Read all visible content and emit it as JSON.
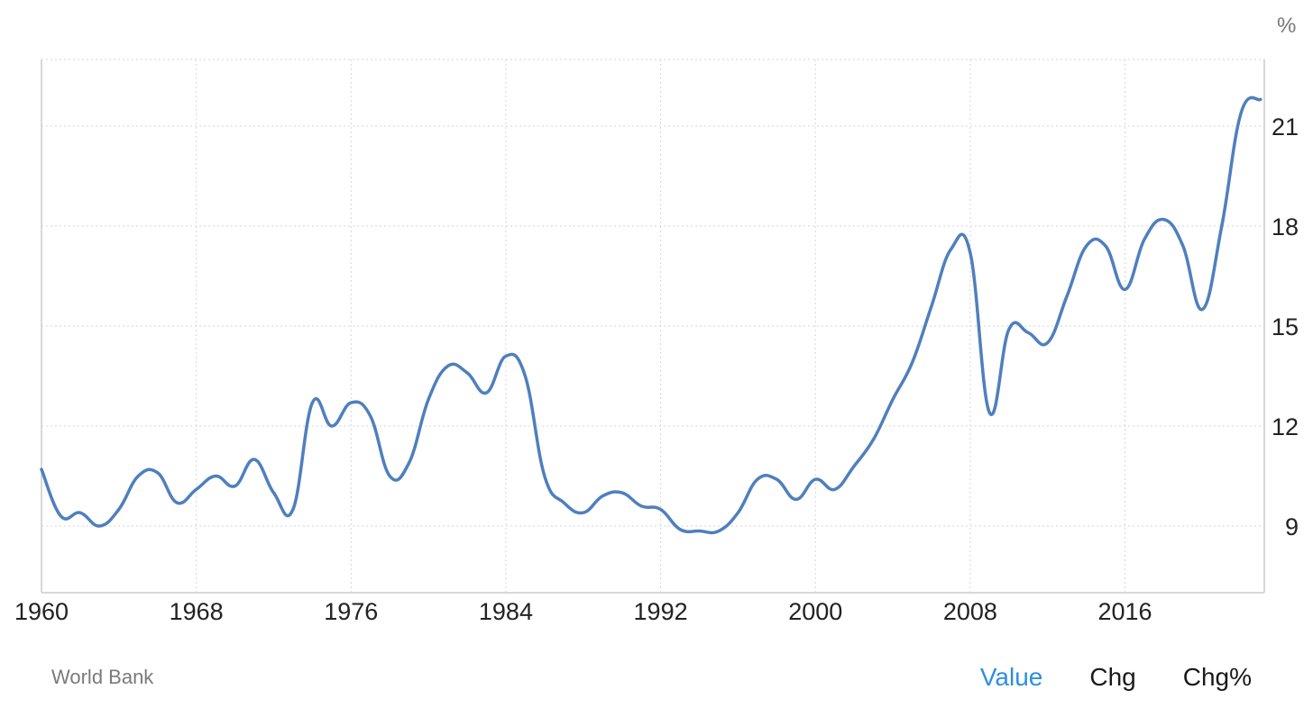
{
  "source_label": "World Bank",
  "tabs": [
    {
      "label": "Value",
      "active": true
    },
    {
      "label": "Chg",
      "active": false
    },
    {
      "label": "Chg%",
      "active": false
    }
  ],
  "colors": {
    "line": "#4f7fbd",
    "grid": "#d6d6d6",
    "active_tab": "#2d8fe0"
  },
  "chart_data": {
    "type": "line",
    "unit": "%",
    "x_ticks": [
      "1960",
      "1968",
      "1976",
      "1984",
      "1992",
      "2000",
      "2008",
      "2016"
    ],
    "y_ticks": [
      9,
      12,
      15,
      18,
      21
    ],
    "xlim": [
      1960,
      2023.2
    ],
    "ylim": [
      7.0,
      23.0
    ],
    "grid": true,
    "y_axis_side": "right",
    "series": [
      {
        "x": [
          1960,
          1961,
          1962,
          1963,
          1964,
          1965,
          1966,
          1967,
          1968,
          1969,
          1970,
          1971,
          1972,
          1973,
          1974,
          1975,
          1976,
          1977,
          1978,
          1979,
          1980,
          1981,
          1982,
          1983,
          1984,
          1985,
          1986,
          1987,
          1988,
          1989,
          1990,
          1991,
          1992,
          1993,
          1994,
          1995,
          1996,
          1997,
          1998,
          1999,
          2000,
          2001,
          2002,
          2003,
          2004,
          2005,
          2006,
          2007,
          2008,
          2009,
          2010,
          2011,
          2012,
          2013,
          2014,
          2015,
          2016,
          2017,
          2018,
          2019,
          2020,
          2021,
          2022,
          2023
        ],
        "y": [
          10.7,
          9.3,
          9.4,
          9.0,
          9.5,
          10.5,
          10.6,
          9.7,
          10.1,
          10.5,
          10.2,
          11.0,
          10.0,
          9.5,
          12.7,
          12.0,
          12.7,
          12.3,
          10.5,
          10.9,
          12.8,
          13.8,
          13.6,
          13.0,
          14.1,
          13.5,
          10.5,
          9.7,
          9.4,
          9.9,
          10.0,
          9.6,
          9.5,
          8.9,
          8.85,
          8.85,
          9.4,
          10.4,
          10.4,
          9.8,
          10.4,
          10.1,
          10.8,
          11.6,
          12.8,
          13.9,
          15.6,
          17.3,
          17.2,
          12.4,
          14.9,
          14.8,
          14.5,
          15.9,
          17.4,
          17.4,
          16.1,
          17.6,
          18.2,
          17.4,
          15.5,
          18.0,
          21.4,
          21.8
        ]
      }
    ]
  }
}
